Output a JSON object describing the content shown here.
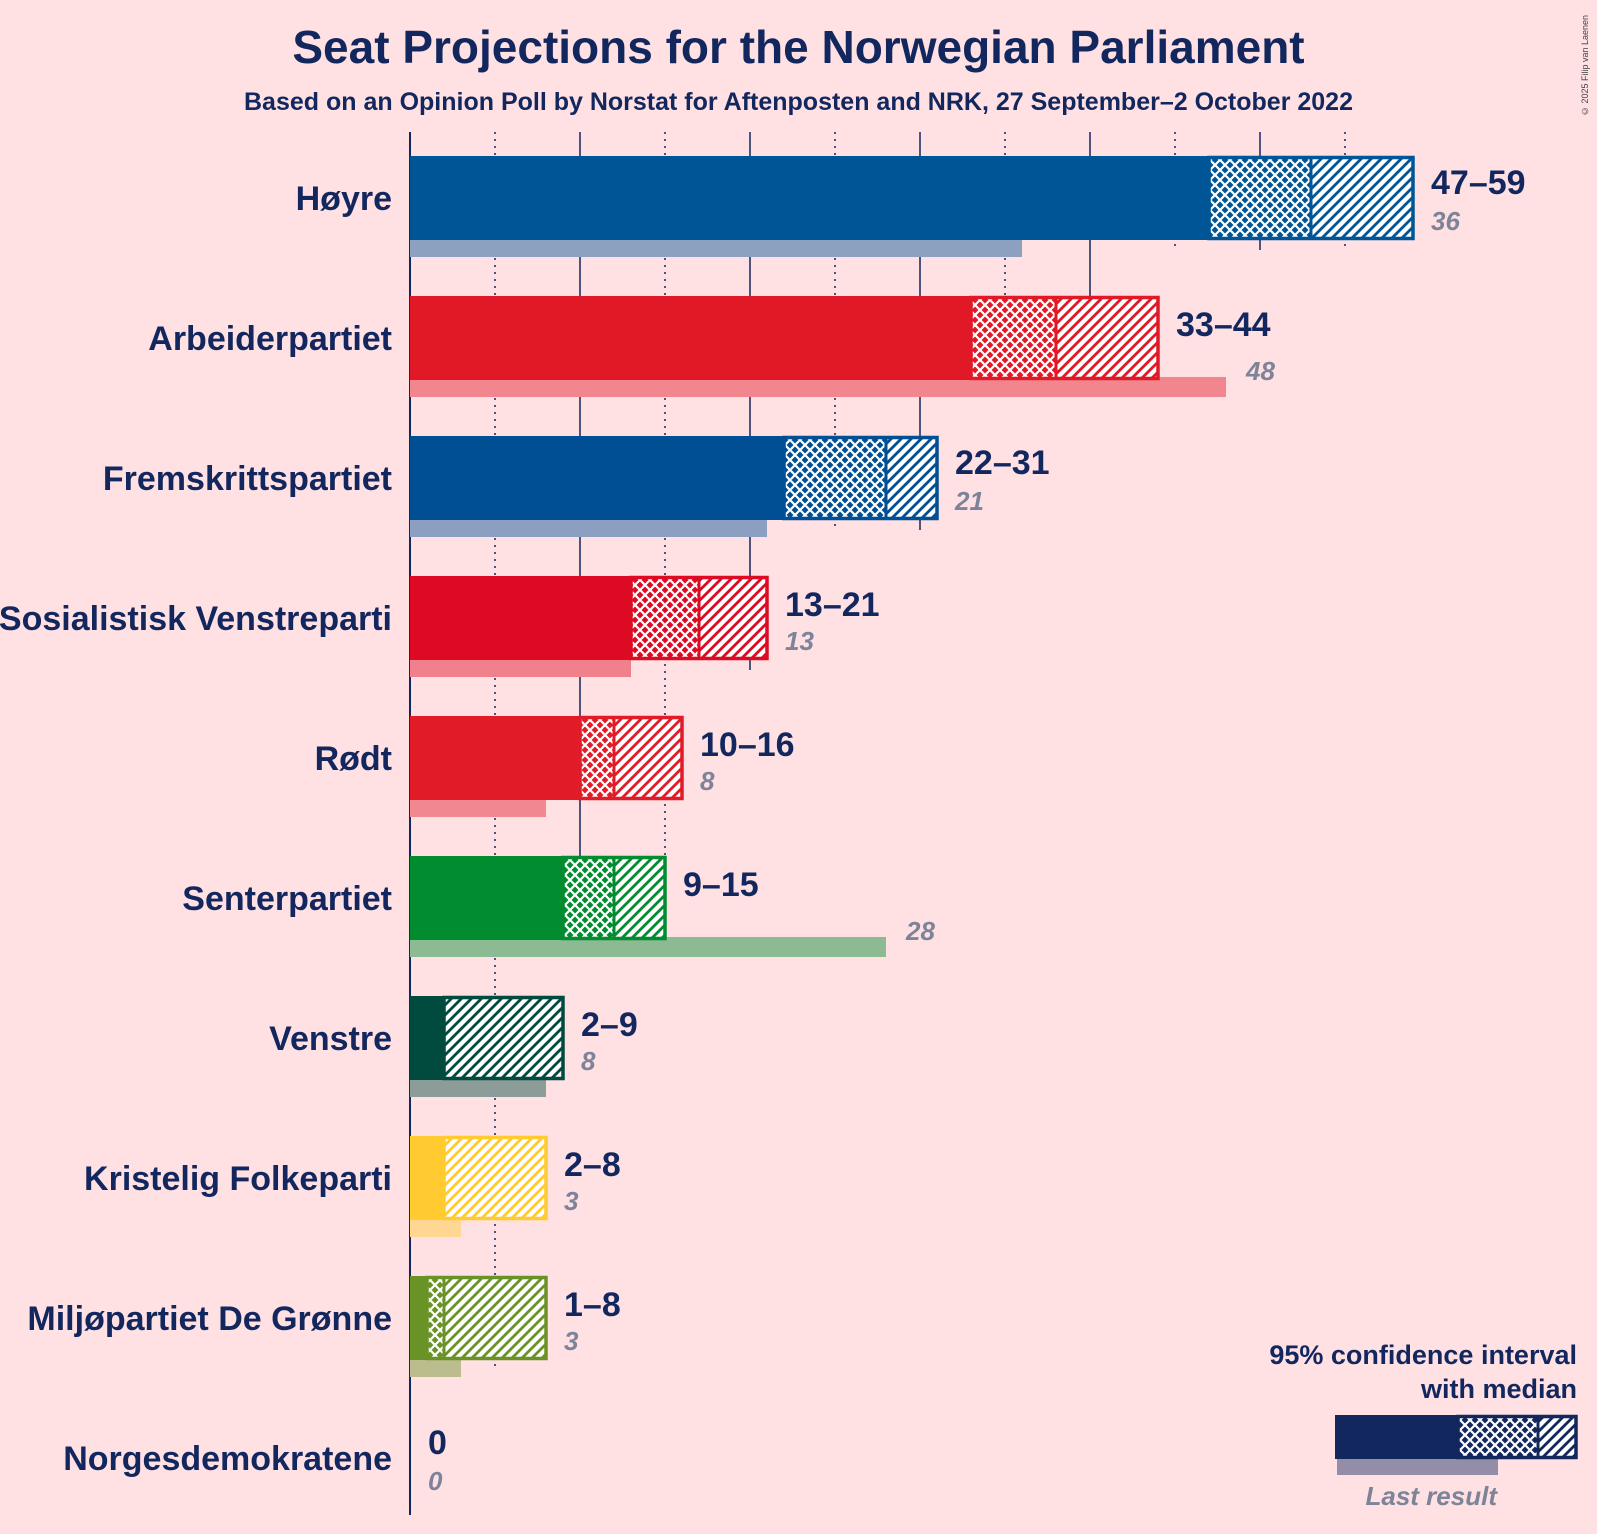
{
  "title": "Seat Projections for the Norwegian Parliament",
  "subtitle": "Based on an Opinion Poll by Norstat for Aftenposten and NRK, 27 September–2 October 2022",
  "copyright": "© 2025 Filip van Laenen",
  "legend": {
    "title_line1": "95% confidence interval",
    "title_line2": "with median",
    "last_result_label": "Last result",
    "color": "#12275e"
  },
  "chart_data": {
    "type": "bar",
    "orientation": "horizontal",
    "title": "Seat Projections for the Norwegian Parliament",
    "xlim": [
      0,
      59
    ],
    "grid": true,
    "categories": [
      "Høyre",
      "Arbeiderpartiet",
      "Fremskrittspartiet",
      "Sosialistisk Venstreparti",
      "Rødt",
      "Senterpartiet",
      "Venstre",
      "Kristelig Folkeparti",
      "Miljøpartiet De Grønne",
      "Norgesdemokratene"
    ],
    "parties": [
      {
        "name": "Høyre",
        "low": 47,
        "median": 53,
        "high": 59,
        "last": 36,
        "range_label": "47–59",
        "last_label": "36",
        "color": "#005596"
      },
      {
        "name": "Arbeiderpartiet",
        "low": 33,
        "median": 38,
        "high": 44,
        "last": 48,
        "range_label": "33–44",
        "last_label": "48",
        "color": "#e11926"
      },
      {
        "name": "Fremskrittspartiet",
        "low": 22,
        "median": 28,
        "high": 31,
        "last": 21,
        "range_label": "22–31",
        "last_label": "21",
        "color": "#004f95"
      },
      {
        "name": "Sosialistisk Venstreparti",
        "low": 13,
        "median": 17,
        "high": 21,
        "last": 13,
        "range_label": "13–21",
        "last_label": "13",
        "color": "#dc0a22"
      },
      {
        "name": "Rødt",
        "low": 10,
        "median": 12,
        "high": 16,
        "last": 8,
        "range_label": "10–16",
        "last_label": "8",
        "color": "#e11c28"
      },
      {
        "name": "Senterpartiet",
        "low": 9,
        "median": 12,
        "high": 15,
        "last": 28,
        "range_label": "9–15",
        "last_label": "28",
        "color": "#008c2f"
      },
      {
        "name": "Venstre",
        "low": 2,
        "median": 2,
        "high": 9,
        "last": 8,
        "range_label": "2–9",
        "last_label": "8",
        "color": "#004b3e"
      },
      {
        "name": "Kristelig Folkeparti",
        "low": 2,
        "median": 2,
        "high": 8,
        "last": 3,
        "range_label": "2–8",
        "last_label": "3",
        "color": "#ffcb30"
      },
      {
        "name": "Miljøpartiet De Grønne",
        "low": 1,
        "median": 2,
        "high": 8,
        "last": 3,
        "range_label": "1–8",
        "last_label": "3",
        "color": "#6a9327"
      },
      {
        "name": "Norgesdemokratene",
        "low": 0,
        "median": 0,
        "high": 0,
        "last": 0,
        "range_label": "0",
        "last_label": "0",
        "color": "#12275e"
      }
    ]
  }
}
